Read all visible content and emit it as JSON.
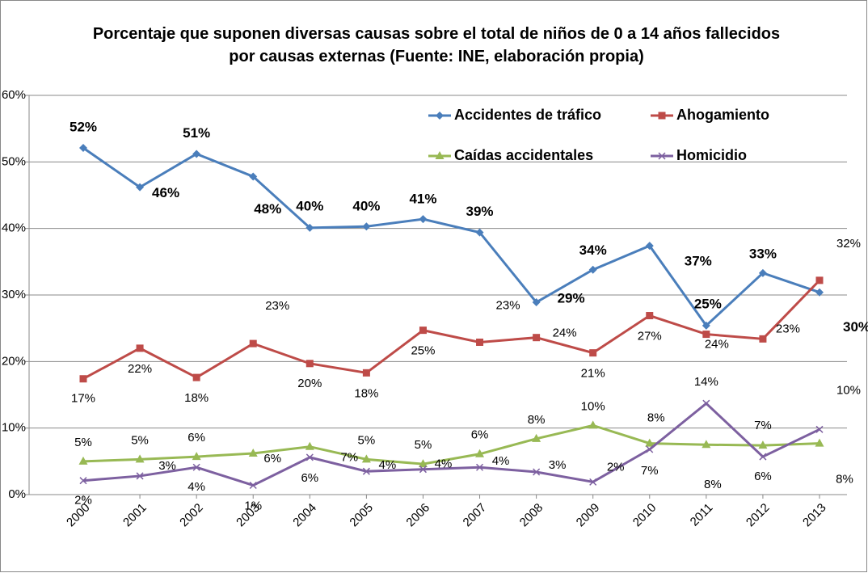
{
  "chart_data": {
    "type": "line",
    "title": "Porcentaje que suponen diversas causas sobre el total de niños de 0 a 14 años fallecidos por causas externas (Fuente: INE, elaboración propia)",
    "categories": [
      "2000",
      "2001",
      "2002",
      "2003",
      "2004",
      "2005",
      "2006",
      "2007",
      "2008",
      "2009",
      "2010",
      "2011",
      "2012",
      "2013"
    ],
    "ylim": [
      0,
      60
    ],
    "yticks": [
      {
        "value": 0,
        "label": "0%"
      },
      {
        "value": 10,
        "label": "10%"
      },
      {
        "value": 20,
        "label": "20%"
      },
      {
        "value": 30,
        "label": "30%"
      },
      {
        "value": 40,
        "label": "40%"
      },
      {
        "value": 50,
        "label": "50%"
      },
      {
        "value": 60,
        "label": "60%"
      }
    ],
    "grid": true,
    "series": [
      {
        "name": "Accidentes de tráfico",
        "color": "#4a7ebb",
        "marker": "diamond",
        "values": [
          52.1,
          46.2,
          51.2,
          47.8,
          40.1,
          40.3,
          41.4,
          39.4,
          28.9,
          33.8,
          37.4,
          25.4,
          33.3,
          30.4
        ],
        "value_labels": [
          "52%",
          "46%",
          "51%",
          "48%",
          "40%",
          "40%",
          "41%",
          "39%",
          "29%",
          "34%",
          "37%",
          "25%",
          "33%",
          "30%"
        ]
      },
      {
        "name": "Ahogamiento",
        "color": "#be4b48",
        "marker": "square",
        "values": [
          17.4,
          22.0,
          17.6,
          22.7,
          19.7,
          18.3,
          24.7,
          22.9,
          23.6,
          21.3,
          26.9,
          24.1,
          23.4,
          32.2
        ],
        "value_labels": [
          "17%",
          "22%",
          "18%",
          "23%",
          "20%",
          "18%",
          "25%",
          "23%",
          "24%",
          "21%",
          "27%",
          "24%",
          "23%",
          "32%"
        ]
      },
      {
        "name": "Caídas accidentales",
        "color": "#98b954",
        "marker": "triangle",
        "values": [
          5.0,
          5.3,
          5.7,
          6.2,
          7.2,
          5.3,
          4.6,
          6.1,
          8.4,
          10.4,
          7.7,
          7.5,
          7.4,
          7.7
        ],
        "value_labels": [
          "5%",
          "5%",
          "6%",
          "6%",
          "7%",
          "5%",
          "5%",
          "6%",
          "8%",
          "10%",
          "8%",
          "8%",
          "7%",
          "8%"
        ]
      },
      {
        "name": "Homicidio",
        "color": "#7d60a0",
        "marker": "x",
        "values": [
          2.1,
          2.8,
          4.1,
          1.4,
          5.6,
          3.5,
          3.8,
          4.1,
          3.4,
          1.9,
          6.8,
          13.7,
          5.7,
          9.8
        ],
        "value_labels": [
          "2%",
          "3%",
          "4%",
          "1%",
          "6%",
          "4%",
          "4%",
          "4%",
          "3%",
          "2%",
          "7%",
          "14%",
          "6%",
          "10%"
        ]
      }
    ]
  }
}
